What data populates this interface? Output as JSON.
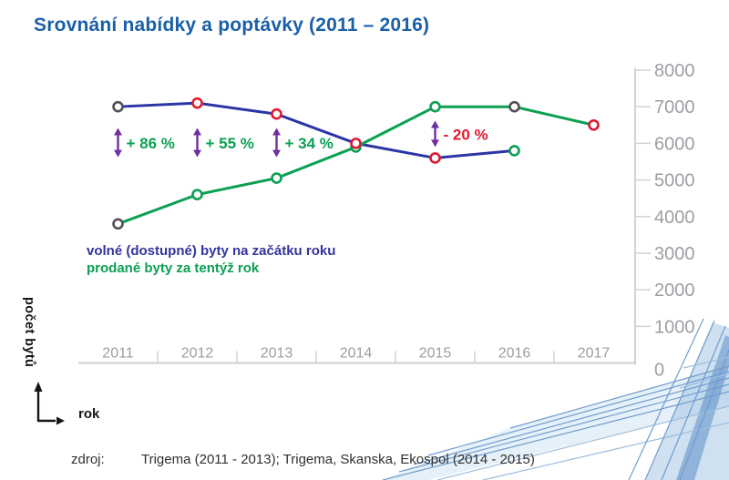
{
  "title": "Srovnání nabídky a poptávky (2011 – 2016)",
  "colors": {
    "title": "#1a5fa8",
    "axis_line": "#d2d2d2",
    "axis_label": "#9b9ea3",
    "text_dark": "#161616",
    "source_text": "#303030"
  },
  "chart_data": {
    "type": "line",
    "x": [
      2011,
      2012,
      2013,
      2014,
      2015,
      2016,
      2017
    ],
    "series": [
      {
        "name": "volné (dostupné) byty na začátku roku",
        "color": "#2b35a6",
        "values": [
          7000,
          7100,
          6800,
          6000,
          5600,
          5800,
          null
        ],
        "marker_colors": [
          "#515155",
          "#e01931",
          "#e01931",
          "#e01931",
          "#e01931",
          "#0ba052",
          null
        ]
      },
      {
        "name": "prodané byty za tentýž rok",
        "color": "#0ba052",
        "values": [
          3800,
          4600,
          5050,
          5900,
          7000,
          7000,
          6500
        ],
        "marker_colors": [
          "#515155",
          "#0ba052",
          "#0ba052",
          "#0ba052",
          "#0ba052",
          "#515155",
          "#e01931"
        ]
      }
    ],
    "ylim": [
      0,
      8000
    ],
    "y_ticks": [
      0,
      1000,
      2000,
      3000,
      4000,
      5000,
      6000,
      7000,
      8000
    ],
    "y_axis_side": "right",
    "grid": false,
    "arrow_color": "#7030a0",
    "annotations": [
      {
        "year_index": 0,
        "text": "+ 86 %",
        "color": "#0ba052",
        "arrow_top": 6420,
        "arrow_bottom": 5620
      },
      {
        "year_index": 1,
        "text": "+ 55 %",
        "color": "#0ba052",
        "arrow_top": 6420,
        "arrow_bottom": 5620
      },
      {
        "year_index": 2,
        "text": "+ 34 %",
        "color": "#0ba052",
        "arrow_top": 6420,
        "arrow_bottom": 5620
      },
      {
        "year_index": 4,
        "text": "- 20 %",
        "color": "#e01931",
        "arrow_top": 6620,
        "arrow_bottom": 5900
      }
    ]
  },
  "axis": {
    "y_label": "počet bytů",
    "x_label": "rok"
  },
  "legend": {
    "items": [
      {
        "text": "volné (dostupné) byty na začátku roku",
        "color": "#33349e"
      },
      {
        "text": "prodané byty za tentýž rok",
        "color": "#0ba052"
      }
    ]
  },
  "source": {
    "label": "zdroj:",
    "text": "Trigema (2011 - 2013); Trigema, Skanska, Ekospol (2014 - 2015)"
  }
}
